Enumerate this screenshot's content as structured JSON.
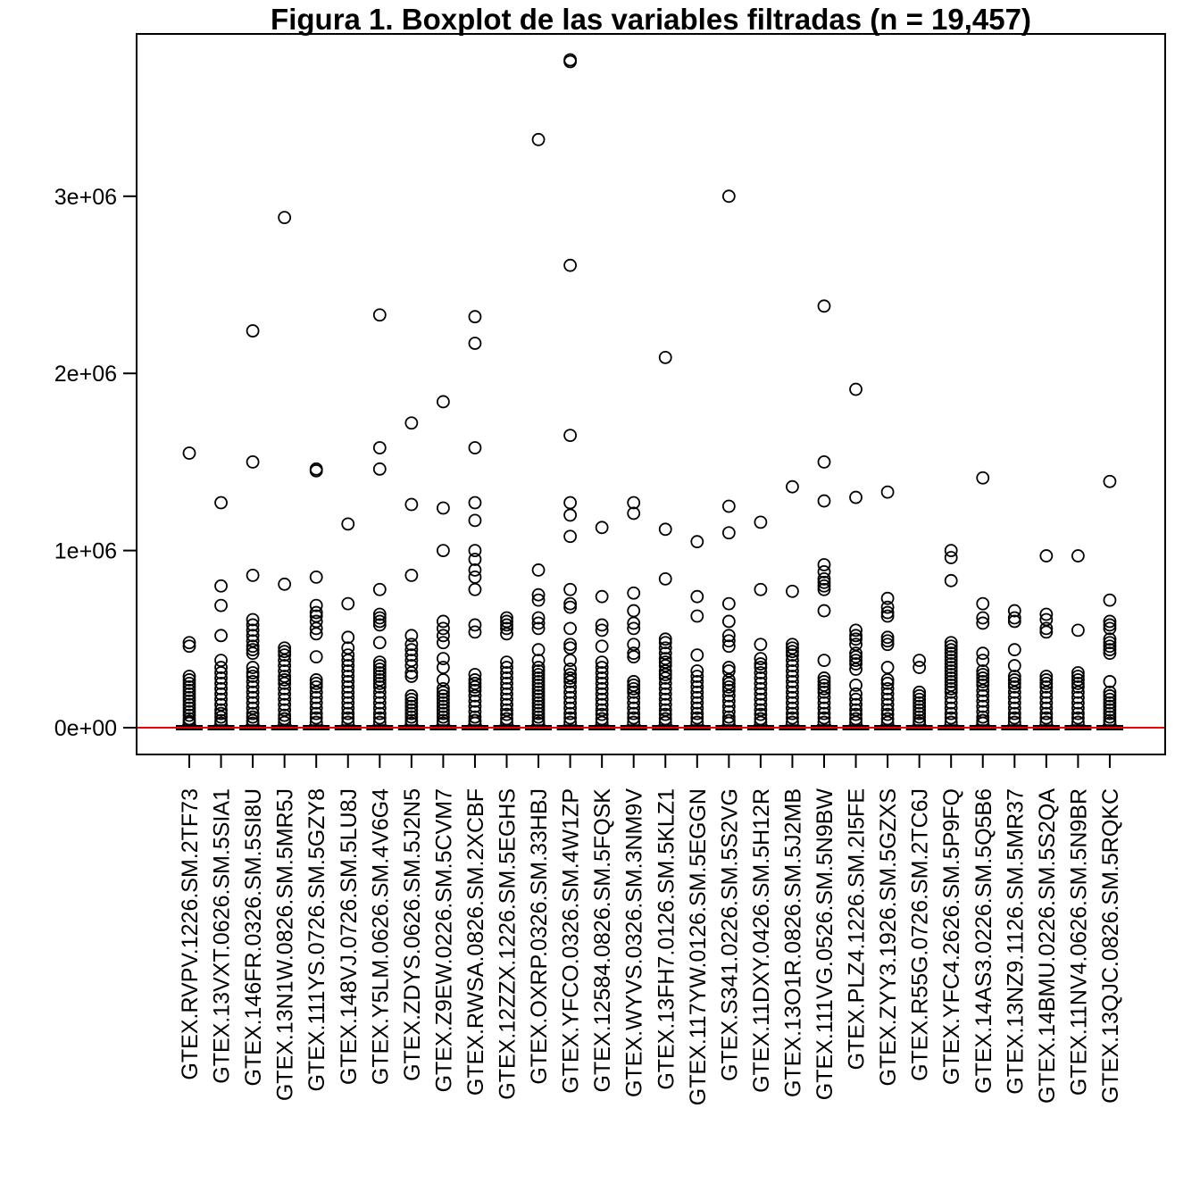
{
  "chart_data": {
    "type": "boxplot",
    "title": "Figura 1. Boxplot de las variables filtradas (n = 19,457)",
    "xlabel": "",
    "ylabel": "",
    "ylim": [
      -150000,
      3870000
    ],
    "yticks": [
      {
        "value": 0,
        "label": "0e+00"
      },
      {
        "value": 1000000,
        "label": "1e+06"
      },
      {
        "value": 2000000,
        "label": "2e+06"
      },
      {
        "value": 3000000,
        "label": "3e+06"
      }
    ],
    "reference_line": {
      "value": 0,
      "color": "#e8000b"
    },
    "colors": {
      "line": "#000000",
      "reference": "#e8000b"
    },
    "box_stats_note": "",
    "categories": [
      "GTEX.RVPV.1226.SM.2TF73",
      "GTEX.13VXT.0626.SM.5SIA1",
      "GTEX.146FR.0326.SM.5SI8U",
      "GTEX.13N1W.0826.SM.5MR5J",
      "GTEX.111YS.0726.SM.5GZY8",
      "GTEX.148VJ.0726.SM.5LU8J",
      "GTEX.Y5LM.0626.SM.4V6G4",
      "GTEX.ZDYS.0626.SM.5J2N5",
      "GTEX.Z9EW.0226.SM.5CVM7",
      "GTEX.RWSA.0826.SM.2XCBF",
      "GTEX.12ZZX.1226.SM.5EGHS",
      "GTEX.OXRP.0326.SM.33HBJ",
      "GTEX.YFCO.0326.SM.4W1ZP",
      "GTEX.12584.0826.SM.5FQSK",
      "GTEX.WYVS.0326.SM.3NM9V",
      "GTEX.13FH7.0126.SM.5KLZ1",
      "GTEX.117YW.0126.SM.5EGGN",
      "GTEX.S341.0226.SM.5S2VG",
      "GTEX.11DXY.0426.SM.5H12R",
      "GTEX.13O1R.0826.SM.5J2MB",
      "GTEX.111VG.0526.SM.5N9BW",
      "GTEX.PLZ4.1226.SM.2I5FE",
      "GTEX.ZYY3.1926.SM.5GZXS",
      "GTEX.R55G.0726.SM.2TC6J",
      "GTEX.YFC4.2626.SM.5P9FQ",
      "GTEX.14AS3.0226.SM.5Q5B6",
      "GTEX.13NZ9.1126.SM.5MR37",
      "GTEX.14BMU.0226.SM.5S2QA",
      "GTEX.11NV4.0626.SM.5N9BR",
      "GTEX.13QJC.0826.SM.5RQKC"
    ],
    "boxes": [
      {
        "whisker_high": 14000,
        "outliers": [
          1550000,
          480000,
          460000,
          290000,
          270000,
          250000,
          230000,
          210000,
          190000,
          170000,
          150000,
          130000,
          110000,
          90000,
          70000,
          50000,
          35000,
          25000
        ]
      },
      {
        "whisker_high": 14000,
        "outliers": [
          1270000,
          800000,
          690000,
          520000,
          380000,
          340000,
          310000,
          280000,
          250000,
          220000,
          190000,
          160000,
          130000,
          100000,
          80000,
          60000,
          40000,
          25000
        ]
      },
      {
        "whisker_high": 14000,
        "outliers": [
          2240000,
          1500000,
          860000,
          610000,
          580000,
          550000,
          520000,
          490000,
          460000,
          440000,
          420000,
          340000,
          310000,
          290000,
          260000,
          230000,
          200000,
          170000,
          140000,
          110000,
          80000,
          60000,
          40000,
          25000
        ]
      },
      {
        "whisker_high": 14000,
        "outliers": [
          2880000,
          810000,
          450000,
          430000,
          410000,
          380000,
          350000,
          320000,
          290000,
          270000,
          250000,
          220000,
          190000,
          160000,
          130000,
          100000,
          70000,
          50000,
          30000
        ]
      },
      {
        "whisker_high": 14000,
        "outliers": [
          1460000,
          1450000,
          850000,
          690000,
          650000,
          630000,
          600000,
          560000,
          530000,
          400000,
          270000,
          250000,
          230000,
          200000,
          170000,
          140000,
          110000,
          80000,
          55000,
          30000
        ]
      },
      {
        "whisker_high": 14000,
        "outliers": [
          1150000,
          700000,
          510000,
          450000,
          410000,
          380000,
          350000,
          320000,
          290000,
          260000,
          230000,
          200000,
          170000,
          140000,
          110000,
          80000,
          55000,
          30000
        ]
      },
      {
        "whisker_high": 14000,
        "outliers": [
          2330000,
          1580000,
          1460000,
          780000,
          640000,
          620000,
          600000,
          580000,
          480000,
          370000,
          350000,
          330000,
          310000,
          290000,
          270000,
          250000,
          230000,
          200000,
          170000,
          140000,
          110000,
          80000,
          55000,
          30000
        ]
      },
      {
        "whisker_high": 14000,
        "outliers": [
          1720000,
          1260000,
          860000,
          520000,
          470000,
          440000,
          410000,
          380000,
          350000,
          310000,
          290000,
          180000,
          160000,
          140000,
          120000,
          100000,
          80000,
          60000,
          40000,
          25000
        ]
      },
      {
        "whisker_high": 14000,
        "outliers": [
          1840000,
          1240000,
          1000000,
          600000,
          560000,
          520000,
          480000,
          390000,
          340000,
          270000,
          220000,
          200000,
          180000,
          160000,
          140000,
          120000,
          100000,
          80000,
          60000,
          40000,
          25000
        ]
      },
      {
        "whisker_high": 14000,
        "outliers": [
          2320000,
          2170000,
          1580000,
          1270000,
          1170000,
          1000000,
          950000,
          890000,
          850000,
          780000,
          580000,
          540000,
          300000,
          270000,
          250000,
          230000,
          210000,
          180000,
          150000,
          120000,
          90000,
          60000,
          40000,
          25000
        ]
      },
      {
        "whisker_high": 14000,
        "outliers": [
          620000,
          600000,
          580000,
          560000,
          530000,
          370000,
          340000,
          310000,
          280000,
          250000,
          220000,
          190000,
          160000,
          130000,
          100000,
          75000,
          50000,
          30000
        ]
      },
      {
        "whisker_high": 14000,
        "outliers": [
          3320000,
          890000,
          750000,
          720000,
          620000,
          590000,
          560000,
          440000,
          380000,
          340000,
          320000,
          300000,
          280000,
          260000,
          240000,
          220000,
          200000,
          180000,
          160000,
          140000,
          120000,
          100000,
          80000,
          60000,
          40000,
          25000
        ]
      },
      {
        "whisker_high": 14000,
        "outliers": [
          3770000,
          3760000,
          2610000,
          1650000,
          1270000,
          1200000,
          1080000,
          780000,
          700000,
          680000,
          560000,
          470000,
          450000,
          380000,
          330000,
          300000,
          280000,
          260000,
          230000,
          200000,
          170000,
          140000,
          110000,
          80000,
          55000,
          30000
        ]
      },
      {
        "whisker_high": 14000,
        "outliers": [
          1130000,
          740000,
          580000,
          550000,
          460000,
          370000,
          340000,
          310000,
          280000,
          250000,
          220000,
          190000,
          160000,
          130000,
          100000,
          75000,
          50000,
          30000
        ]
      },
      {
        "whisker_high": 14000,
        "outliers": [
          1270000,
          1210000,
          760000,
          660000,
          590000,
          560000,
          470000,
          420000,
          400000,
          260000,
          240000,
          220000,
          200000,
          170000,
          140000,
          110000,
          80000,
          55000,
          30000
        ]
      },
      {
        "whisker_high": 14000,
        "outliers": [
          2090000,
          1120000,
          840000,
          500000,
          480000,
          450000,
          420000,
          390000,
          370000,
          350000,
          320000,
          300000,
          280000,
          250000,
          220000,
          190000,
          160000,
          130000,
          100000,
          75000,
          50000,
          30000
        ]
      },
      {
        "whisker_high": 14000,
        "outliers": [
          1050000,
          740000,
          630000,
          410000,
          320000,
          290000,
          260000,
          230000,
          200000,
          170000,
          140000,
          110000,
          80000,
          55000,
          30000
        ]
      },
      {
        "whisker_high": 14000,
        "outliers": [
          3000000,
          1250000,
          1100000,
          700000,
          600000,
          520000,
          490000,
          460000,
          340000,
          320000,
          270000,
          250000,
          230000,
          210000,
          180000,
          150000,
          120000,
          90000,
          60000,
          40000,
          25000
        ]
      },
      {
        "whisker_high": 14000,
        "outliers": [
          1160000,
          780000,
          470000,
          390000,
          360000,
          340000,
          310000,
          280000,
          250000,
          220000,
          190000,
          160000,
          130000,
          100000,
          75000,
          50000,
          30000
        ]
      },
      {
        "whisker_high": 14000,
        "outliers": [
          1360000,
          770000,
          470000,
          450000,
          430000,
          410000,
          380000,
          350000,
          320000,
          290000,
          260000,
          230000,
          200000,
          170000,
          140000,
          110000,
          80000,
          55000,
          30000
        ]
      },
      {
        "whisker_high": 14000,
        "outliers": [
          2380000,
          1500000,
          1280000,
          920000,
          880000,
          840000,
          820000,
          800000,
          780000,
          660000,
          380000,
          280000,
          260000,
          240000,
          220000,
          200000,
          170000,
          140000,
          110000,
          80000,
          55000,
          30000
        ]
      },
      {
        "whisker_high": 14000,
        "outliers": [
          1910000,
          1300000,
          550000,
          520000,
          500000,
          470000,
          420000,
          400000,
          380000,
          360000,
          330000,
          240000,
          190000,
          160000,
          130000,
          100000,
          75000,
          50000,
          30000
        ]
      },
      {
        "whisker_high": 14000,
        "outliers": [
          1330000,
          730000,
          680000,
          650000,
          630000,
          510000,
          490000,
          470000,
          340000,
          270000,
          250000,
          220000,
          190000,
          160000,
          130000,
          100000,
          75000,
          50000,
          30000
        ]
      },
      {
        "whisker_high": 14000,
        "outliers": [
          380000,
          340000,
          200000,
          180000,
          160000,
          140000,
          120000,
          100000,
          80000,
          60000,
          40000,
          25000
        ]
      },
      {
        "whisker_high": 14000,
        "outliers": [
          1000000,
          960000,
          830000,
          480000,
          460000,
          440000,
          420000,
          400000,
          380000,
          360000,
          340000,
          320000,
          300000,
          280000,
          260000,
          240000,
          220000,
          200000,
          170000,
          140000,
          110000,
          80000,
          55000,
          30000
        ]
      },
      {
        "whisker_high": 14000,
        "outliers": [
          1410000,
          700000,
          620000,
          590000,
          420000,
          380000,
          320000,
          300000,
          280000,
          260000,
          240000,
          210000,
          180000,
          150000,
          120000,
          90000,
          60000,
          40000,
          25000
        ]
      },
      {
        "whisker_high": 14000,
        "outliers": [
          660000,
          620000,
          600000,
          440000,
          350000,
          290000,
          270000,
          250000,
          230000,
          200000,
          170000,
          140000,
          110000,
          80000,
          55000,
          30000
        ]
      },
      {
        "whisker_high": 14000,
        "outliers": [
          970000,
          640000,
          610000,
          560000,
          540000,
          290000,
          270000,
          250000,
          230000,
          200000,
          170000,
          140000,
          110000,
          80000,
          55000,
          30000
        ]
      },
      {
        "whisker_high": 14000,
        "outliers": [
          970000,
          550000,
          310000,
          290000,
          270000,
          250000,
          230000,
          200000,
          170000,
          140000,
          110000,
          80000,
          55000,
          30000
        ]
      },
      {
        "whisker_high": 14000,
        "outliers": [
          1390000,
          720000,
          600000,
          580000,
          560000,
          500000,
          480000,
          460000,
          440000,
          420000,
          260000,
          200000,
          180000,
          160000,
          140000,
          120000,
          100000,
          80000,
          60000,
          40000,
          25000
        ]
      }
    ]
  }
}
